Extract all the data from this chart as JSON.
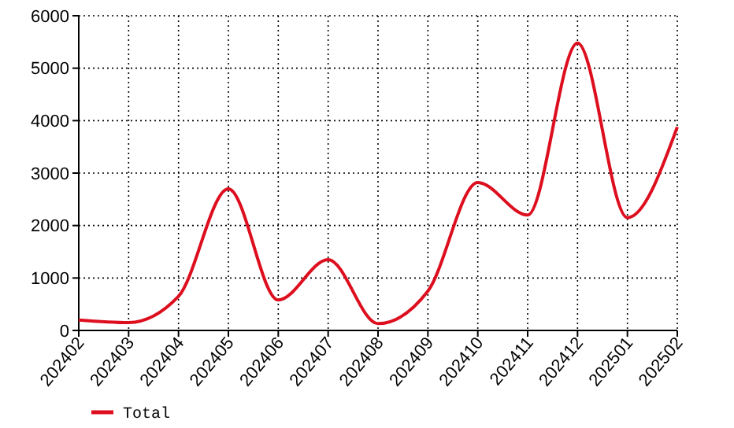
{
  "chart_data": {
    "type": "line",
    "categories": [
      "202402",
      "202403",
      "202404",
      "202405",
      "202406",
      "202407",
      "202408",
      "202409",
      "202410",
      "202411",
      "202412",
      "202501",
      "202502"
    ],
    "series": [
      {
        "name": "Total",
        "color": "#dd0f1f",
        "values": [
          200,
          150,
          650,
          2700,
          580,
          1350,
          130,
          750,
          2820,
          2200,
          5480,
          2150,
          3880
        ]
      }
    ],
    "ylim": [
      0,
      6000
    ],
    "yticks": [
      0,
      1000,
      2000,
      3000,
      4000,
      5000,
      6000
    ],
    "grid": true,
    "legend": "bottom left",
    "line_style": "solid",
    "marker": "none"
  }
}
